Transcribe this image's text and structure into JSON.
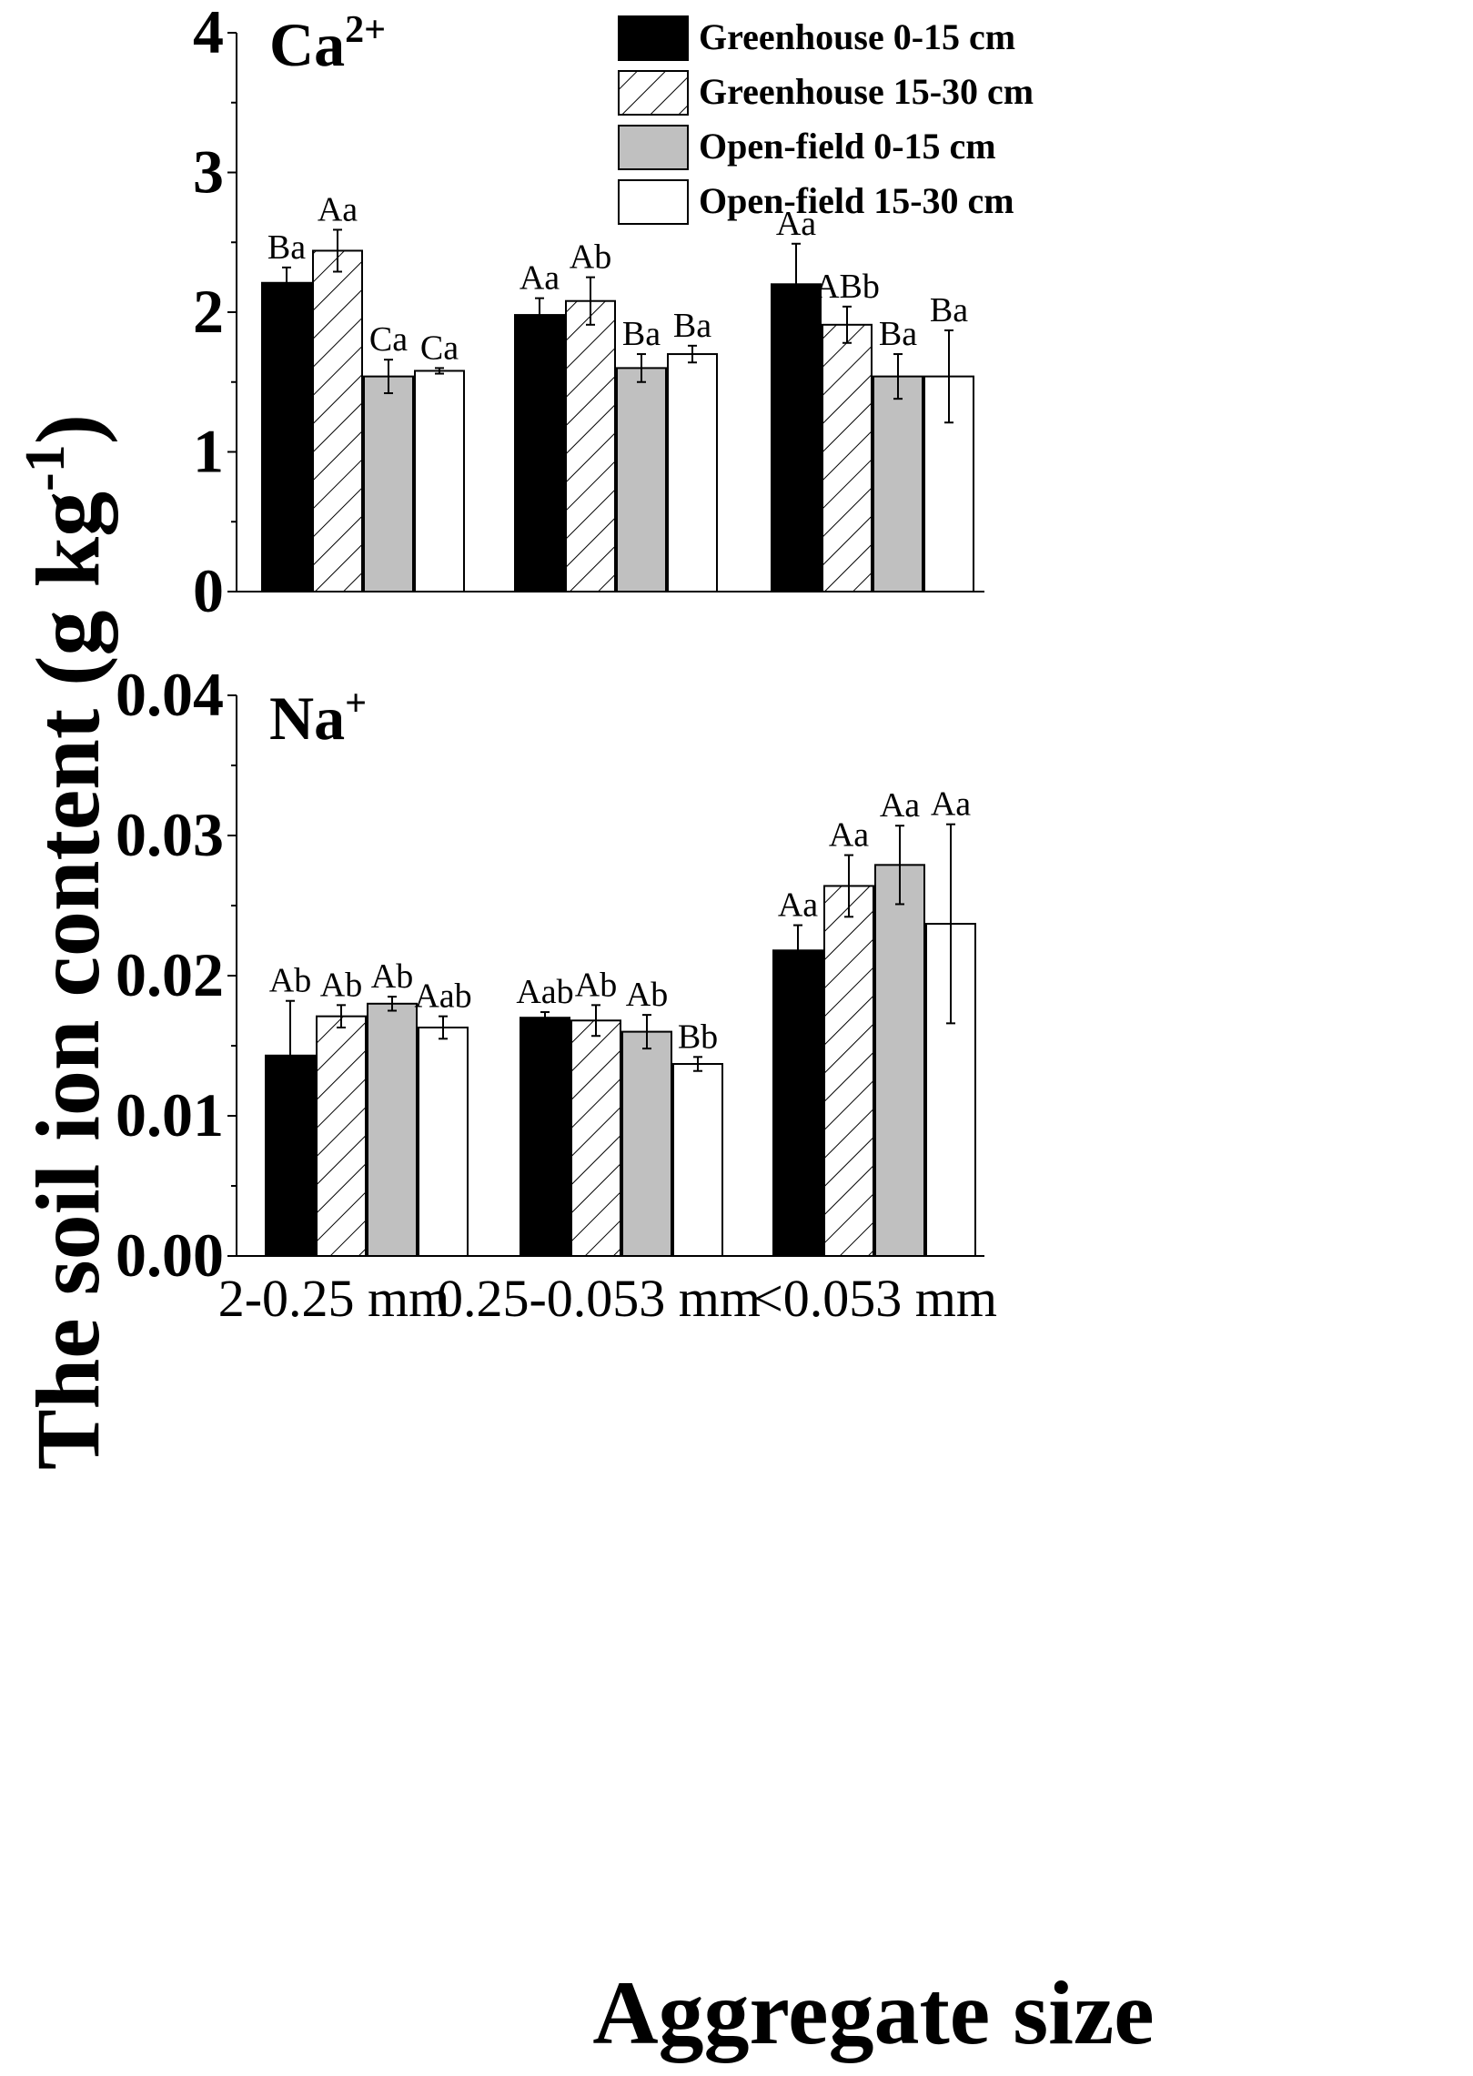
{
  "chart_data": {
    "type": "bar",
    "xlabel": "Aggregate size",
    "ylabel_text": "The soil ion content (g kg",
    "ylabel_sup": "-1",
    "ylabel_close": ")",
    "categories": [
      "2-0.25 mm",
      "0.25-0.053 mm",
      "<0.053 mm"
    ],
    "series_names": [
      "Greenhouse 0-15 cm",
      "Greenhouse 15-30 cm",
      "Open-field 0-15 cm",
      "Open-field 15-30 cm"
    ],
    "series_colors": [
      "#000000",
      "hatch",
      "#c0c0c0",
      "#ffffff"
    ],
    "legend_placement": "top-right",
    "panels": [
      {
        "title_base": "Ca",
        "title_sup": "2+",
        "ylim": [
          0,
          4
        ],
        "yticks": [
          "0",
          "1",
          "2",
          "3",
          "4"
        ],
        "series": [
          {
            "name": "Greenhouse 0-15 cm",
            "values": [
              2.21,
              1.98,
              2.2
            ],
            "errors": [
              0.11,
              0.12,
              0.29
            ],
            "labels": [
              "Ba",
              "Aa",
              "Aa"
            ]
          },
          {
            "name": "Greenhouse 15-30 cm",
            "values": [
              2.44,
              2.08,
              1.91
            ],
            "errors": [
              0.15,
              0.17,
              0.13
            ],
            "labels": [
              "Aa",
              "Ab",
              "ABb"
            ]
          },
          {
            "name": "Open-field 0-15 cm",
            "values": [
              1.54,
              1.6,
              1.54
            ],
            "errors": [
              0.12,
              0.1,
              0.16
            ],
            "labels": [
              "Ca",
              "Ba",
              "Ba"
            ]
          },
          {
            "name": "Open-field 15-30 cm",
            "values": [
              1.58,
              1.7,
              1.54
            ],
            "errors": [
              0.02,
              0.06,
              0.33
            ],
            "labels": [
              "Ca",
              "Ba",
              "Ba"
            ]
          }
        ]
      },
      {
        "title_base": "Na",
        "title_sup": "+",
        "ylim": [
          0,
          0.04
        ],
        "yticks": [
          "0.00",
          "0.01",
          "0.02",
          "0.03",
          "0.04"
        ],
        "series": [
          {
            "name": "Greenhouse 0-15 cm",
            "values": [
              0.0143,
              0.017,
              0.0218
            ],
            "errors": [
              0.0039,
              0.0004,
              0.0018
            ],
            "labels": [
              "Ab",
              "Aab",
              "Aa"
            ]
          },
          {
            "name": "Greenhouse 15-30 cm",
            "values": [
              0.0171,
              0.0168,
              0.0264
            ],
            "errors": [
              0.0008,
              0.0011,
              0.0022
            ],
            "labels": [
              "Ab",
              "Ab",
              "Aa"
            ]
          },
          {
            "name": "Open-field 0-15 cm",
            "values": [
              0.018,
              0.016,
              0.0279
            ],
            "errors": [
              0.0005,
              0.0012,
              0.0028
            ],
            "labels": [
              "Ab",
              "Ab",
              "Aa"
            ]
          },
          {
            "name": "Open-field 15-30 cm",
            "values": [
              0.0163,
              0.0137,
              0.0237
            ],
            "errors": [
              0.0008,
              0.0005,
              0.0071
            ],
            "labels": [
              "Aab",
              "Bb",
              "Aa"
            ]
          }
        ]
      }
    ]
  }
}
